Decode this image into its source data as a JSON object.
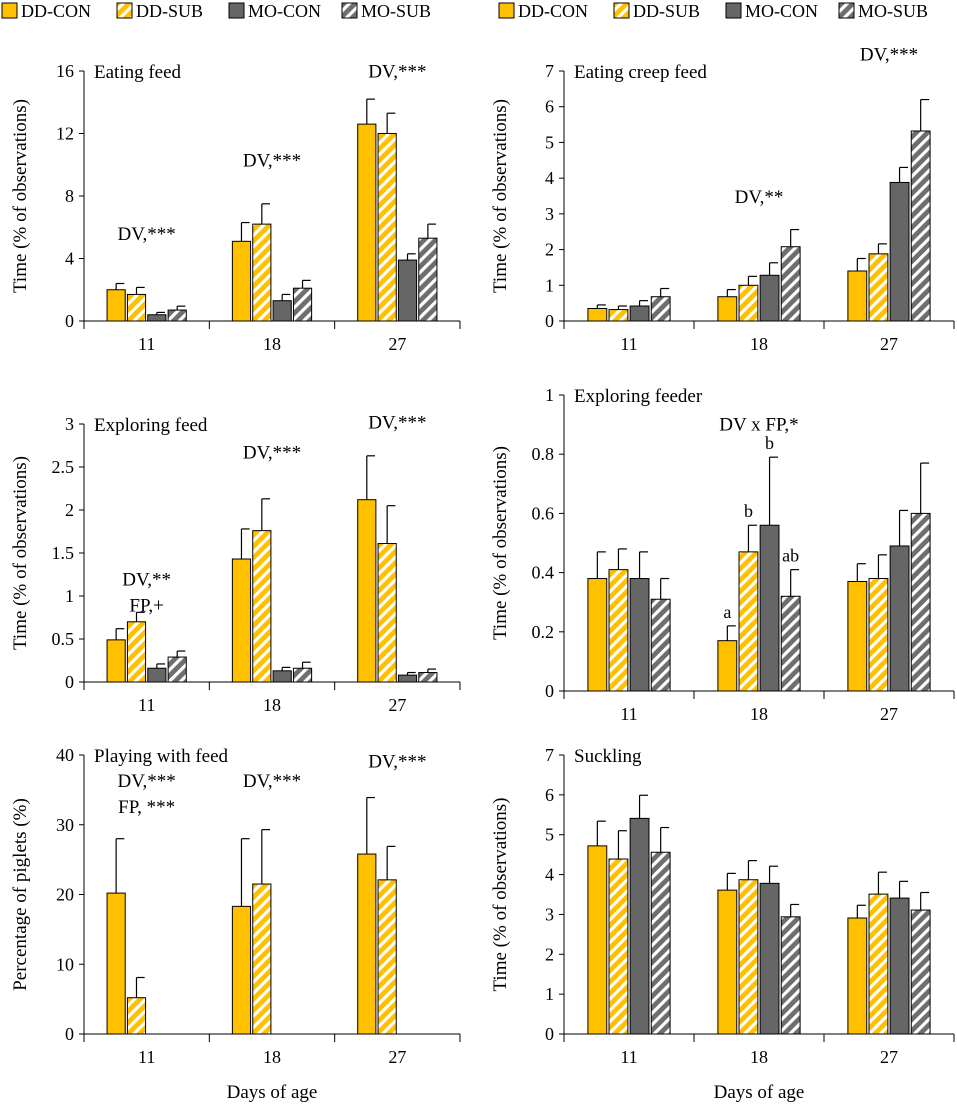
{
  "legend": [
    {
      "key": "DD-CON",
      "label": "DD-CON"
    },
    {
      "key": "DD-SUB",
      "label": "DD-SUB"
    },
    {
      "key": "MO-CON",
      "label": "MO-CON"
    },
    {
      "key": "MO-SUB",
      "label": "MO-SUB"
    }
  ],
  "colors": {
    "DD-CON": "#FFC000",
    "DD-SUB": "#FFC000",
    "MO-CON": "#666666",
    "MO-SUB": "#808080",
    "stripe": "#ffffff",
    "axis": "#000000"
  },
  "common": {
    "xlabel": "Days of age"
  },
  "chart_data": [
    {
      "type": "bar",
      "title": "Eating feed",
      "ylabel": "Time (% of observations)",
      "ylim": [
        0,
        16
      ],
      "yticks": [
        0,
        4,
        8,
        12,
        16
      ],
      "ytick_labels": [
        "0",
        "4",
        "8",
        "12",
        "16"
      ],
      "categories": [
        "11",
        "18",
        "27"
      ],
      "show_xlabel": false,
      "series": [
        {
          "name": "DD-CON",
          "values": [
            2.0,
            5.1,
            12.6
          ],
          "errors": [
            0.4,
            1.2,
            1.6
          ]
        },
        {
          "name": "DD-SUB",
          "values": [
            1.7,
            6.2,
            12.0
          ],
          "errors": [
            0.45,
            1.3,
            1.3
          ]
        },
        {
          "name": "MO-CON",
          "values": [
            0.4,
            1.3,
            3.9
          ],
          "errors": [
            0.15,
            0.4,
            0.4
          ]
        },
        {
          "name": "MO-SUB",
          "values": [
            0.7,
            2.1,
            5.3
          ],
          "errors": [
            0.25,
            0.5,
            0.9
          ]
        }
      ],
      "annotations": [
        {
          "category": 0,
          "lines": [
            "DV,***"
          ],
          "y": 5.2
        },
        {
          "category": 1,
          "lines": [
            "DV,***"
          ],
          "y": 9.9
        },
        {
          "category": 2,
          "lines": [
            "DV,***"
          ],
          "y": 15.6
        }
      ]
    },
    {
      "type": "bar",
      "title": "Eating creep feed",
      "ylabel": "Time (% of observations)",
      "ylim": [
        0,
        7
      ],
      "yticks": [
        0,
        1,
        2,
        3,
        4,
        5,
        6,
        7
      ],
      "ytick_labels": [
        "0",
        "1",
        "2",
        "3",
        "4",
        "5",
        "6",
        "7"
      ],
      "categories": [
        "11",
        "18",
        "27"
      ],
      "show_xlabel": false,
      "series": [
        {
          "name": "DD-CON",
          "values": [
            0.35,
            0.68,
            1.4
          ],
          "errors": [
            0.1,
            0.2,
            0.35
          ]
        },
        {
          "name": "DD-SUB",
          "values": [
            0.32,
            1.0,
            1.88
          ],
          "errors": [
            0.1,
            0.25,
            0.28
          ]
        },
        {
          "name": "MO-CON",
          "values": [
            0.42,
            1.28,
            3.88
          ],
          "errors": [
            0.15,
            0.35,
            0.42
          ]
        },
        {
          "name": "MO-SUB",
          "values": [
            0.68,
            2.08,
            5.32
          ],
          "errors": [
            0.23,
            0.48,
            0.88
          ]
        }
      ],
      "annotations": [
        {
          "category": 1,
          "lines": [
            "DV,**"
          ],
          "y": 3.3
        },
        {
          "category": 2,
          "lines": [
            "DV,***"
          ],
          "y": 7.3
        }
      ]
    },
    {
      "type": "bar",
      "title": "Exploring feed",
      "ylabel": "Time (% of observations)",
      "ylim": [
        0,
        3
      ],
      "yticks": [
        0,
        0.5,
        1,
        1.5,
        2,
        2.5,
        3
      ],
      "ytick_labels": [
        "0",
        "0.5",
        "1",
        "1.5",
        "2",
        "2.5",
        "3"
      ],
      "categories": [
        "11",
        "18",
        "27"
      ],
      "show_xlabel": false,
      "series": [
        {
          "name": "DD-CON",
          "values": [
            0.49,
            1.43,
            2.12
          ],
          "errors": [
            0.13,
            0.35,
            0.51
          ]
        },
        {
          "name": "DD-SUB",
          "values": [
            0.7,
            1.76,
            1.61
          ],
          "errors": [
            0.11,
            0.37,
            0.44
          ]
        },
        {
          "name": "MO-CON",
          "values": [
            0.16,
            0.13,
            0.08
          ],
          "errors": [
            0.05,
            0.04,
            0.03
          ]
        },
        {
          "name": "MO-SUB",
          "values": [
            0.29,
            0.16,
            0.11
          ],
          "errors": [
            0.07,
            0.07,
            0.04
          ]
        }
      ],
      "annotations": [
        {
          "category": 0,
          "lines": [
            "DV,**",
            "FP,+"
          ],
          "y": 1.12
        },
        {
          "category": 1,
          "lines": [
            "DV,***"
          ],
          "y": 2.6
        },
        {
          "category": 2,
          "lines": [
            "DV,***"
          ],
          "y": 2.95
        }
      ]
    },
    {
      "type": "bar",
      "title": "Exploring feeder",
      "ylabel": "Time (% of observations)",
      "ylim": [
        0,
        1
      ],
      "yticks": [
        0,
        0.2,
        0.4,
        0.6,
        0.8,
        1
      ],
      "ytick_labels": [
        "0",
        "0.2",
        "0.4",
        "0.6",
        "0.8",
        "1"
      ],
      "categories": [
        "11",
        "18",
        "27"
      ],
      "show_xlabel": false,
      "series": [
        {
          "name": "DD-CON",
          "values": [
            0.38,
            0.17,
            0.37
          ],
          "errors": [
            0.09,
            0.05,
            0.06
          ]
        },
        {
          "name": "DD-SUB",
          "values": [
            0.41,
            0.47,
            0.38
          ],
          "errors": [
            0.07,
            0.09,
            0.08
          ]
        },
        {
          "name": "MO-CON",
          "values": [
            0.38,
            0.56,
            0.49
          ],
          "errors": [
            0.09,
            0.23,
            0.12
          ]
        },
        {
          "name": "MO-SUB",
          "values": [
            0.31,
            0.32,
            0.6
          ],
          "errors": [
            0.07,
            0.09,
            0.17
          ]
        }
      ],
      "letters": [
        {
          "category": 1,
          "series": 0,
          "text": "a"
        },
        {
          "category": 1,
          "series": 1,
          "text": "b"
        },
        {
          "category": 1,
          "series": 2,
          "text": "b"
        },
        {
          "category": 1,
          "series": 3,
          "text": "ab"
        }
      ],
      "annotations": [
        {
          "category": 1,
          "lines": [
            "DV x FP,*"
          ],
          "y": 0.88
        }
      ]
    },
    {
      "type": "bar",
      "title": "Playing with feed",
      "ylabel": "Percentage of piglets (%)",
      "ylim": [
        0,
        40
      ],
      "yticks": [
        0,
        10,
        20,
        30,
        40
      ],
      "ytick_labels": [
        "0",
        "10",
        "20",
        "30",
        "40"
      ],
      "categories": [
        "11",
        "18",
        "27"
      ],
      "show_xlabel": true,
      "series": [
        {
          "name": "DD-CON",
          "values": [
            20.2,
            18.3,
            25.8
          ],
          "errors": [
            7.8,
            9.7,
            8.1
          ]
        },
        {
          "name": "DD-SUB",
          "values": [
            5.2,
            21.5,
            22.1
          ],
          "errors": [
            2.9,
            7.8,
            4.8
          ]
        }
      ],
      "annotations": [
        {
          "category": 0,
          "lines": [
            "DV,***",
            "FP, ***"
          ],
          "y": 35.4
        },
        {
          "category": 1,
          "lines": [
            "DV,***"
          ],
          "y": 35.4
        },
        {
          "category": 2,
          "lines": [
            "DV,***"
          ],
          "y": 38.2
        }
      ]
    },
    {
      "type": "bar",
      "title": "Suckling",
      "ylabel": "Time (% of observations)",
      "ylim": [
        0,
        7
      ],
      "yticks": [
        0,
        1,
        2,
        3,
        4,
        5,
        6,
        7
      ],
      "ytick_labels": [
        "0",
        "1",
        "2",
        "3",
        "4",
        "5",
        "6",
        "7"
      ],
      "categories": [
        "11",
        "18",
        "27"
      ],
      "show_xlabel": true,
      "series": [
        {
          "name": "DD-CON",
          "values": [
            4.72,
            3.61,
            2.91
          ],
          "errors": [
            0.62,
            0.42,
            0.32
          ]
        },
        {
          "name": "DD-SUB",
          "values": [
            4.39,
            3.87,
            3.51
          ],
          "errors": [
            0.71,
            0.48,
            0.55
          ]
        },
        {
          "name": "MO-CON",
          "values": [
            5.41,
            3.78,
            3.41
          ],
          "errors": [
            0.58,
            0.43,
            0.42
          ]
        },
        {
          "name": "MO-SUB",
          "values": [
            4.56,
            2.94,
            3.11
          ],
          "errors": [
            0.62,
            0.31,
            0.44
          ]
        }
      ],
      "annotations": []
    }
  ]
}
